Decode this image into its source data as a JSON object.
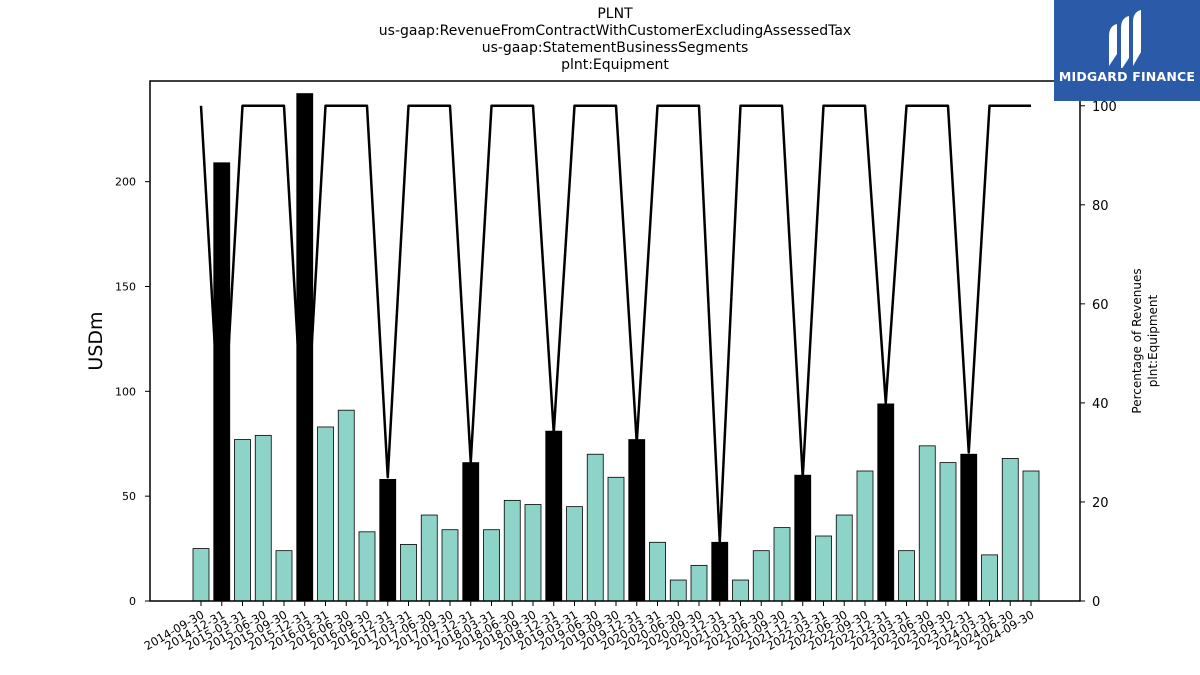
{
  "titles": [
    "PLNT",
    "us-gaap:RevenueFromContractWithCustomerExcludingAssessedTax",
    "us-gaap:StatementBusinessSegments",
    "plnt:Equipment"
  ],
  "logo": {
    "text": "MIDGARD FINANCE",
    "icon": "midgard-logo-icon"
  },
  "chart_data": {
    "type": "bar",
    "ylabel": "USDm",
    "y2label_lines": [
      "Percentage of Revenues",
      "plnt:Equipment"
    ],
    "ylim": [
      0,
      248
    ],
    "y2lim": [
      0,
      105
    ],
    "yticks": [
      0,
      50,
      100,
      150,
      200
    ],
    "y2ticks": [
      0,
      20,
      40,
      60,
      80,
      100
    ],
    "grid": false,
    "colors": {
      "quarterly_bar": "#8dd3c7",
      "annual_bar": "#000000",
      "line": "#000000"
    },
    "categories": [
      "2014-09-30",
      "2014-12-31",
      "2015-03-31",
      "2015-06-30",
      "2015-09-30",
      "2015-12-31",
      "2016-03-31",
      "2016-06-30",
      "2016-09-30",
      "2016-12-31",
      "2017-03-31",
      "2017-06-30",
      "2017-09-30",
      "2017-12-31",
      "2018-03-31",
      "2018-06-30",
      "2018-09-30",
      "2018-12-31",
      "2019-03-31",
      "2019-06-30",
      "2019-09-30",
      "2019-12-31",
      "2020-03-31",
      "2020-06-30",
      "2020-09-30",
      "2020-12-31",
      "2021-03-31",
      "2021-06-30",
      "2021-09-30",
      "2021-12-31",
      "2022-03-31",
      "2022-06-30",
      "2022-09-30",
      "2022-12-31",
      "2023-03-31",
      "2023-06-30",
      "2023-09-30",
      "2023-12-31",
      "2024-03-31",
      "2024-06-30",
      "2024-09-30"
    ],
    "series": [
      {
        "values": [
          25,
          209,
          77,
          79,
          24,
          242,
          83,
          91,
          33,
          58,
          27,
          41,
          34,
          66,
          34,
          48,
          46,
          81,
          45,
          70,
          59,
          77,
          28,
          10,
          17,
          28,
          10,
          24,
          35,
          60,
          31,
          41,
          62,
          94,
          24,
          74,
          66,
          70,
          22,
          68,
          62
        ],
        "annual_flags": [
          false,
          true,
          false,
          false,
          false,
          true,
          false,
          false,
          false,
          true,
          false,
          false,
          false,
          true,
          false,
          false,
          false,
          true,
          false,
          false,
          false,
          true,
          false,
          false,
          false,
          true,
          false,
          false,
          false,
          true,
          false,
          false,
          false,
          true,
          false,
          false,
          false,
          true,
          false,
          false,
          false
        ]
      },
      {
        "axis": "right",
        "values": [
          100,
          27,
          100,
          100,
          100,
          27,
          100,
          100,
          100,
          25,
          100,
          100,
          100,
          28,
          100,
          100,
          100,
          34,
          100,
          100,
          100,
          32,
          100,
          100,
          100,
          12,
          100,
          100,
          100,
          25,
          100,
          100,
          100,
          40,
          100,
          100,
          100,
          30,
          100,
          100,
          100
        ]
      }
    ]
  }
}
